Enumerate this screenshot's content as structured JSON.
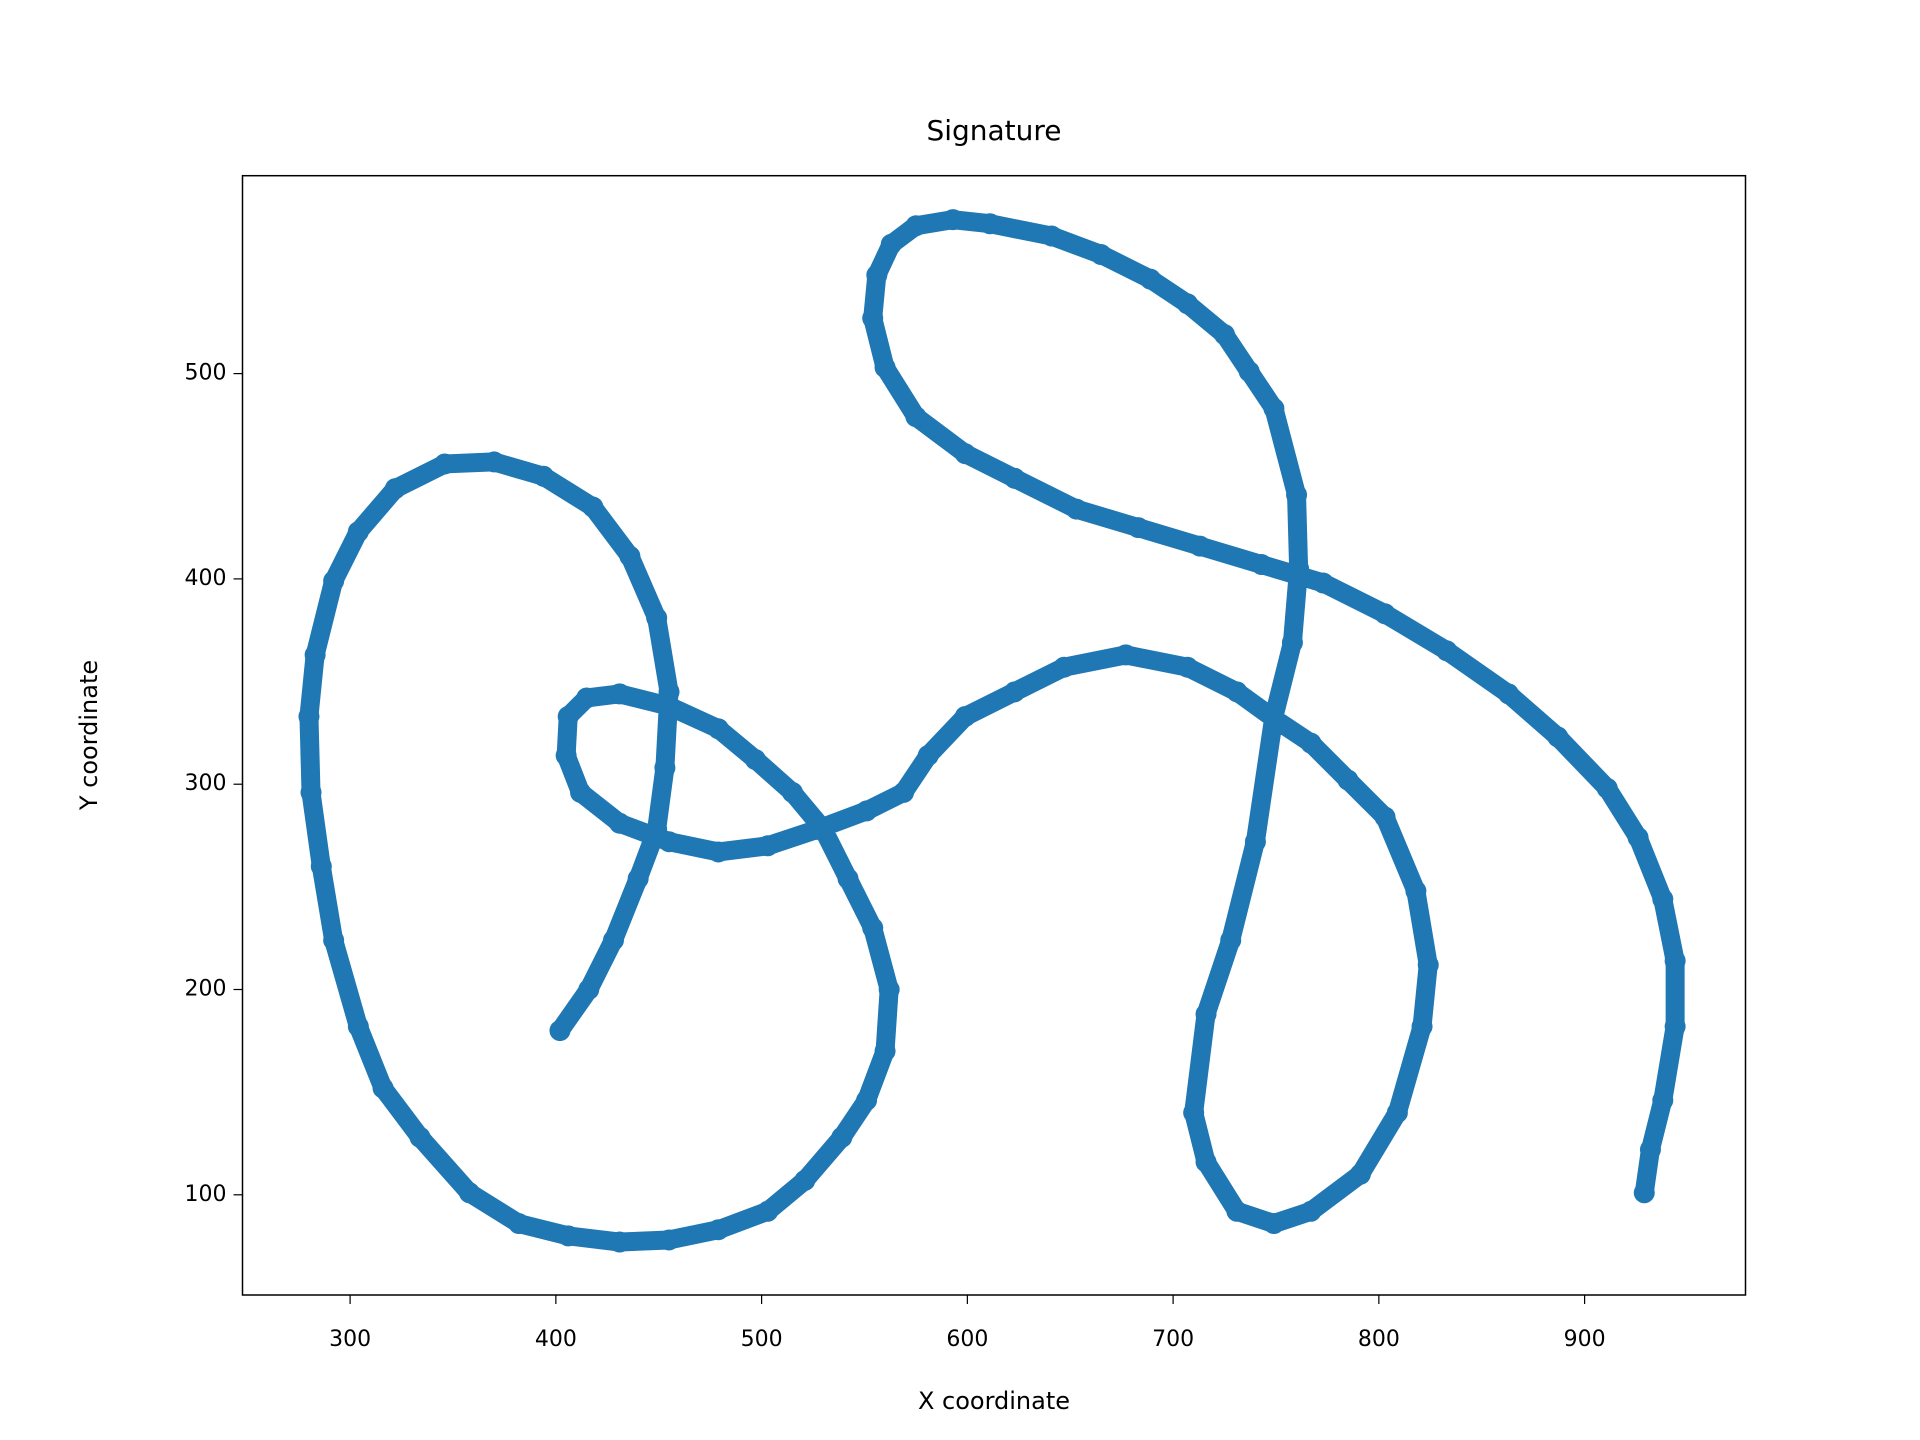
{
  "chart_data": {
    "type": "scatter",
    "title": "Signature",
    "x_label": "X coordinate",
    "y_label": "Y coordinate",
    "color": "#1f77b4",
    "grid": false,
    "x": [
      402,
      416,
      428,
      440,
      449,
      453,
      455,
      449,
      436,
      418,
      394,
      370,
      346,
      322,
      304,
      292,
      283,
      280,
      281,
      286,
      292,
      304,
      316,
      334,
      358,
      382,
      406,
      431,
      455,
      479,
      503,
      521,
      539,
      551,
      560,
      562,
      554,
      542,
      530,
      515,
      497,
      479,
      455,
      431,
      415,
      406,
      405,
      412,
      431,
      455,
      479,
      503,
      527,
      551,
      569,
      581,
      599,
      623,
      647,
      677,
      707,
      731,
      749,
      767,
      785,
      803,
      818,
      824,
      821,
      809,
      791,
      767,
      749,
      731,
      716,
      710,
      716,
      728,
      740,
      749,
      758,
      761,
      760,
      749,
      737,
      725,
      707,
      689,
      665,
      641,
      611,
      593,
      575,
      563,
      556,
      554,
      560,
      575,
      599,
      623,
      653,
      683,
      713,
      743,
      773,
      803,
      833,
      863,
      887,
      911,
      926,
      938,
      944,
      944,
      938,
      932,
      929
    ],
    "values": [
      180,
      200,
      224,
      254,
      278,
      308,
      345,
      381,
      411,
      435,
      450,
      457,
      456,
      444,
      423,
      399,
      363,
      333,
      296,
      260,
      224,
      182,
      152,
      128,
      101,
      86,
      80,
      77,
      78,
      83,
      92,
      107,
      128,
      146,
      170,
      200,
      230,
      254,
      278,
      296,
      312,
      327,
      338,
      344,
      342,
      333,
      314,
      296,
      281,
      272,
      267,
      270,
      278,
      287,
      296,
      314,
      333,
      345,
      357,
      363,
      357,
      345,
      332,
      320,
      302,
      284,
      248,
      212,
      182,
      140,
      110,
      92,
      86,
      92,
      116,
      140,
      188,
      224,
      272,
      333,
      369,
      405,
      441,
      483,
      501,
      519,
      534,
      546,
      558,
      567,
      573,
      575,
      572,
      563,
      548,
      527,
      503,
      479,
      461,
      449,
      434,
      425,
      416,
      407,
      398,
      383,
      365,
      344,
      323,
      298,
      274,
      244,
      214,
      182,
      146,
      122,
      101
    ],
    "xlim": [
      247.7,
      978.2
    ],
    "ylim": [
      51.2,
      596.4
    ],
    "xticks": [
      300,
      400,
      500,
      600,
      700,
      800,
      900
    ],
    "yticks": [
      100,
      200,
      300,
      400,
      500
    ]
  }
}
